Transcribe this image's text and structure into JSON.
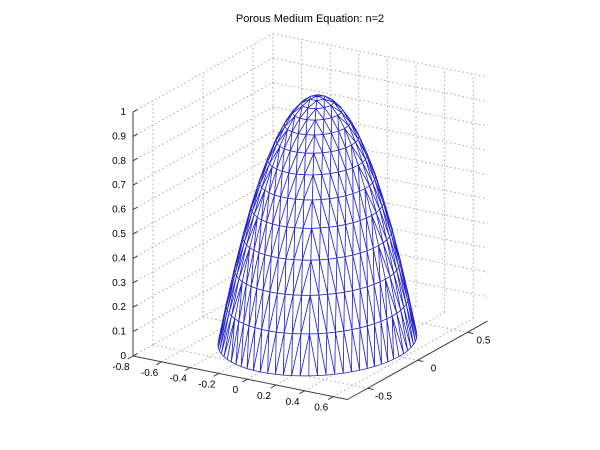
{
  "window": {
    "background": "#ffffff"
  },
  "chart_data": {
    "type": "surface",
    "title": "Porous Medium Equation: n=2",
    "description": "3-D wireframe mesh (trimesh) of a radially symmetric dome solution of the porous medium equation, plotted over a triangulated disk with concentric rings",
    "view": {
      "azimuth_deg": -37.5,
      "elevation_deg": 30,
      "projection": "orthographic"
    },
    "axes": {
      "x": {
        "range": [
          -0.8,
          0.7
        ],
        "ticks": [
          -0.8,
          -0.6,
          -0.4,
          -0.2,
          0,
          0.2,
          0.4,
          0.6
        ],
        "tick_labels": [
          "-0.8",
          "-0.6",
          "-0.4",
          "-0.2",
          "0",
          "0.2",
          "0.4",
          "0.6"
        ]
      },
      "y": {
        "range": [
          -0.7,
          0.7
        ],
        "ticks": [
          -0.5,
          0,
          0.5
        ],
        "tick_labels": [
          "-0.5",
          "0",
          "0.5"
        ]
      },
      "z": {
        "range": [
          0,
          1
        ],
        "ticks": [
          0,
          0.1,
          0.2,
          0.3,
          0.4,
          0.5,
          0.6,
          0.7,
          0.8,
          0.9,
          1
        ],
        "tick_labels": [
          "0",
          "0.1",
          "0.2",
          "0.3",
          "0.4",
          "0.5",
          "0.6",
          "0.7",
          "0.8",
          "0.9",
          "1"
        ]
      }
    },
    "grid": {
      "visible": true,
      "style": "dotted"
    },
    "surface": {
      "shape": "circular dome centered at (0,0), apex height 1",
      "equation": "u(r) = max(0, 1 - (r/R)^2)",
      "base_radius": 0.57,
      "peak_height": 1,
      "center_xy": [
        0,
        0
      ],
      "rings": 12,
      "spokes_per_ring": 6,
      "profile_z": [
        1,
        0.9931,
        0.9722,
        0.9375,
        0.8889,
        0.8264,
        0.75,
        0.6597,
        0.5556,
        0.4375,
        0.3056,
        0.1597,
        0
      ]
    },
    "colors": {
      "mesh": "#2222cc",
      "face": "#ffffff",
      "grid": "#ababab",
      "axis": "#3f3f3f",
      "text": "#000000",
      "background": "#ffffff"
    }
  }
}
